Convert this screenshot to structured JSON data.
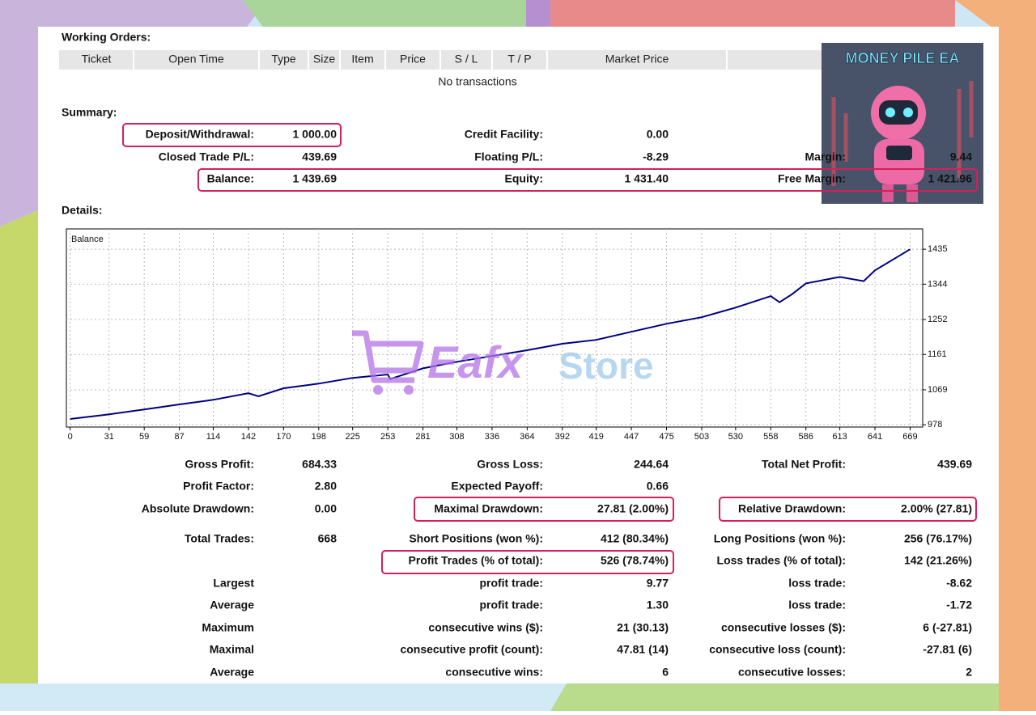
{
  "working_orders": {
    "title": "Working Orders:",
    "columns": [
      "Ticket",
      "Open Time",
      "Type",
      "Size",
      "Item",
      "Price",
      "S / L",
      "T / P",
      "Market Price"
    ],
    "empty": "No transactions"
  },
  "summary": {
    "title": "Summary:",
    "rows": [
      {
        "c1": [
          "Deposit/Withdrawal:",
          "1 000.00"
        ],
        "c2": [
          "Credit Facility:",
          "0.00"
        ]
      },
      {
        "c1": [
          "Closed Trade P/L:",
          "439.69"
        ],
        "c2": [
          "Floating P/L:",
          "-8.29"
        ],
        "c3": [
          "Margin:",
          "9.44"
        ]
      },
      {
        "c1": [
          "Balance:",
          "1 439.69"
        ],
        "c2": [
          "Equity:",
          "1 431.40"
        ],
        "c3": [
          "Free Margin:",
          "1 421.96"
        ]
      }
    ]
  },
  "details": {
    "title": "Details:",
    "chart": {
      "type": "line",
      "label": "Balance",
      "color": "#00007f",
      "grid": true,
      "x": [
        0,
        31,
        59,
        87,
        114,
        142,
        150,
        170,
        198,
        225,
        253,
        255,
        281,
        308,
        336,
        364,
        392,
        419,
        447,
        475,
        503,
        530,
        558,
        565,
        575,
        586,
        613,
        632,
        641,
        669
      ],
      "values": [
        993,
        1005,
        1018,
        1031,
        1043,
        1060,
        1052,
        1073,
        1085,
        1100,
        1109,
        1097,
        1125,
        1142,
        1157,
        1172,
        1189,
        1199,
        1220,
        1241,
        1258,
        1283,
        1313,
        1297,
        1318,
        1346,
        1363,
        1352,
        1380,
        1435
      ],
      "xlim": [
        -3,
        679
      ],
      "ylim": [
        972,
        1488
      ],
      "xticks": [
        0,
        31,
        59,
        87,
        114,
        142,
        170,
        198,
        225,
        253,
        281,
        308,
        336,
        364,
        392,
        419,
        447,
        475,
        503,
        530,
        558,
        586,
        613,
        641,
        669
      ],
      "yticks": [
        978,
        1069,
        1161,
        1252,
        1344,
        1435
      ]
    },
    "rows": [
      {
        "c1": [
          "Gross Profit:",
          "684.33"
        ],
        "c2": [
          "Gross Loss:",
          "244.64"
        ],
        "c3": [
          "Total Net Profit:",
          "439.69"
        ]
      },
      {
        "c1": [
          "Profit Factor:",
          "2.80"
        ],
        "c2": [
          "Expected Payoff:",
          "0.66"
        ]
      },
      {
        "c1": [
          "Absolute Drawdown:",
          "0.00"
        ],
        "c2": [
          "Maximal Drawdown:",
          "27.81 (2.00%)"
        ],
        "c3": [
          "Relative Drawdown:",
          "2.00% (27.81)"
        ]
      },
      {
        "c1": [
          "Total Trades:",
          "668"
        ],
        "c2": [
          "Short Positions (won %):",
          "412 (80.34%)"
        ],
        "c3": [
          "Long Positions (won %):",
          "256 (76.17%)"
        ]
      },
      {
        "c2": [
          "Profit Trades (% of total):",
          "526 (78.74%)"
        ],
        "c3": [
          "Loss trades (% of total):",
          "142 (21.26%)"
        ]
      },
      {
        "c1": [
          "Largest"
        ],
        "c2": [
          "profit trade:",
          "9.77"
        ],
        "c3": [
          "loss trade:",
          "-8.62"
        ]
      },
      {
        "c1": [
          "Average"
        ],
        "c2": [
          "profit trade:",
          "1.30"
        ],
        "c3": [
          "loss trade:",
          "-1.72"
        ]
      },
      {
        "c1": [
          "Maximum"
        ],
        "c2": [
          "consecutive wins ($):",
          "21 (30.13)"
        ],
        "c3": [
          "consecutive losses ($):",
          "6 (-27.81)"
        ]
      },
      {
        "c1": [
          "Maximal"
        ],
        "c2": [
          "consecutive profit (count):",
          "47.81 (14)"
        ],
        "c3": [
          "consecutive loss (count):",
          "-27.81 (6)"
        ]
      },
      {
        "c1": [
          "Average"
        ],
        "c2": [
          "consecutive wins:",
          "6"
        ],
        "c3": [
          "consecutive losses:",
          "2"
        ]
      }
    ]
  },
  "watermark": {
    "brand": "Eafx",
    "suffix": "Store"
  },
  "badge": "MONEY PILE EA"
}
